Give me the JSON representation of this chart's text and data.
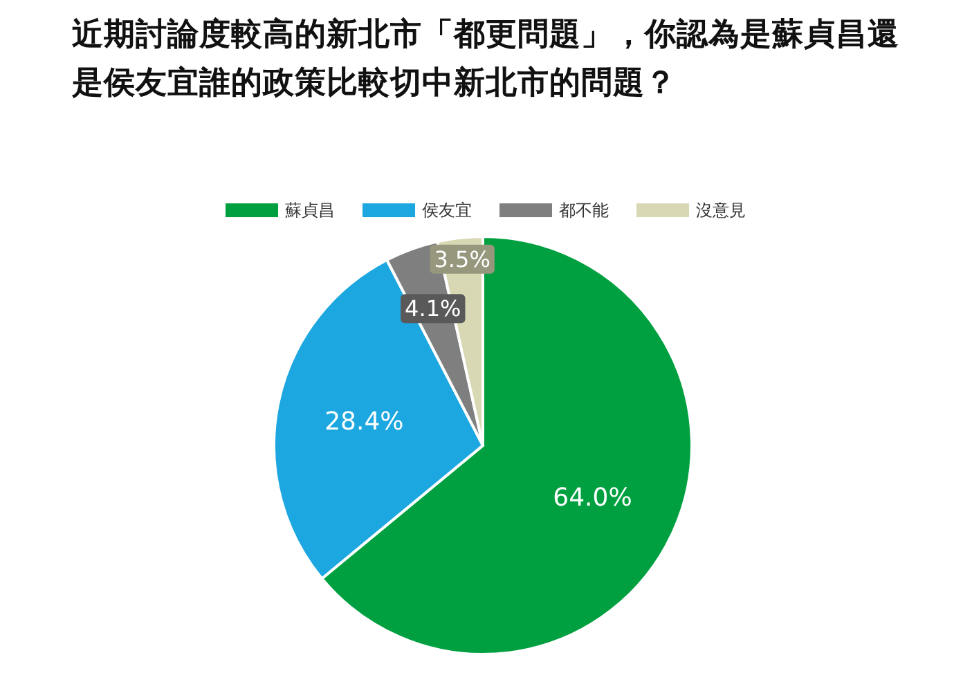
{
  "chart_data": {
    "type": "pie",
    "title": "近期討論度較高的新北市「都更問題」，你認為是蘇貞昌還是侯友宜誰的政策比較切中新北市的問題？",
    "categories": [
      "蘇貞昌",
      "侯友宜",
      "都不能",
      "沒意見"
    ],
    "values": [
      64.0,
      28.4,
      4.1,
      3.5
    ],
    "colors": [
      "#00a040",
      "#1da7e0",
      "#7f7f7f",
      "#d8d8b4"
    ],
    "value_labels": [
      "64.0%",
      "28.4%",
      "4.1%",
      "3.5%"
    ],
    "legend": "top"
  }
}
